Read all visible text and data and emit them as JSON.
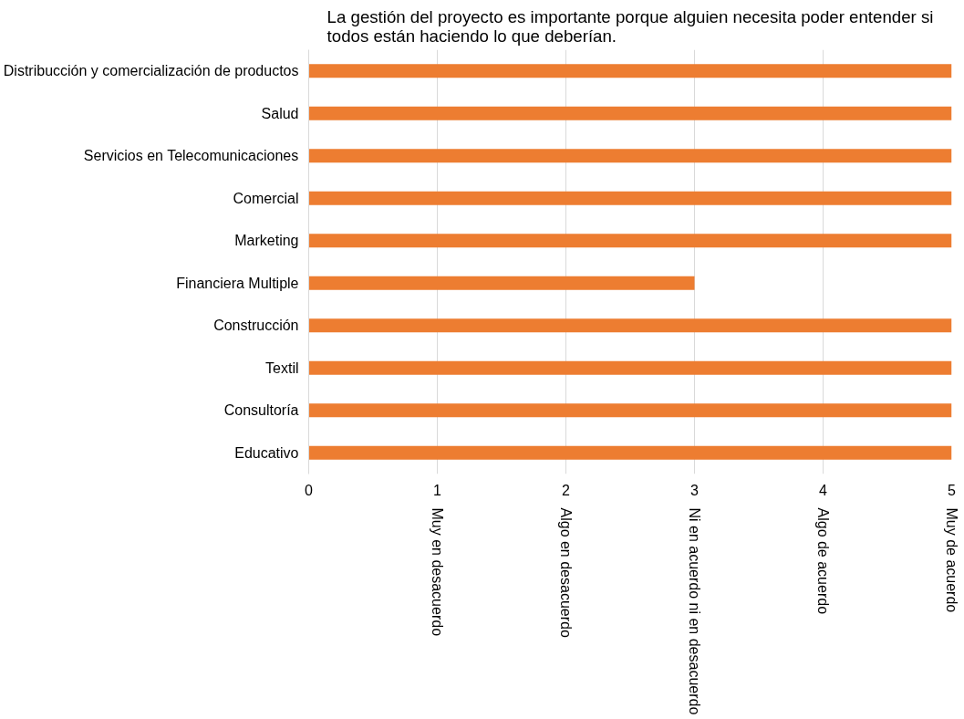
{
  "chart_data": {
    "type": "bar",
    "orientation": "horizontal",
    "title": "La gestión del proyecto es importante porque alguien necesita poder entender si\ntodos están haciendo lo que deberían.",
    "categories": [
      "Distribucción y comercialización de productos",
      "Salud",
      "Servicios en Telecomunicaciones",
      "Comercial",
      "Marketing",
      "Financiera Multiple",
      "Construcción",
      "Textil",
      "Consultoría",
      "Educativo"
    ],
    "values": [
      5,
      5,
      5,
      5,
      5,
      3,
      5,
      5,
      5,
      5
    ],
    "color": "#ed7d31",
    "xlim": [
      0,
      5
    ],
    "xticks": [
      0,
      1,
      2,
      3,
      4,
      5
    ],
    "grid": "x",
    "annotations": [
      "Muy en desacuerdo",
      "Algo en desacuerdo",
      "Ni en acuerdo ni en desacuerdo",
      "Algo de acuerdo",
      "Muy de acuerdo"
    ]
  }
}
